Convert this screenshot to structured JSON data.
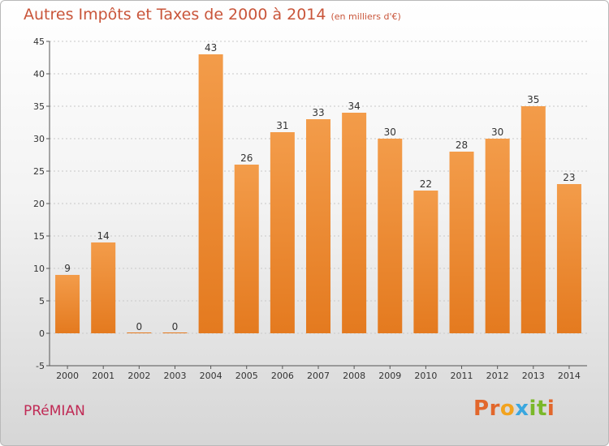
{
  "header": {
    "title": "Autres Impôts et Taxes de 2000 à 2014",
    "unit": "(en milliers d'€)"
  },
  "footer": {
    "commune": "PRéMIAN",
    "brand_letters": [
      "P",
      "r",
      "o",
      "x",
      "i",
      "t",
      "i"
    ],
    "brand_colors": [
      "#e2672c",
      "#e2672c",
      "#f2a31f",
      "#3aa7df",
      "#7ab829",
      "#7ab829",
      "#e2672c"
    ]
  },
  "colors": {
    "bar": "#f39c4a",
    "bar_dark": "#e47a1f",
    "grid": "#c8c8c8"
  },
  "chart_data": {
    "type": "bar",
    "categories": [
      "2000",
      "2001",
      "2002",
      "2003",
      "2004",
      "2005",
      "2006",
      "2007",
      "2008",
      "2009",
      "2010",
      "2011",
      "2012",
      "2013",
      "2014"
    ],
    "values": [
      9,
      14,
      0,
      0,
      43,
      26,
      31,
      33,
      34,
      30,
      22,
      28,
      30,
      35,
      23
    ],
    "data_labels": [
      "9",
      "14",
      "0",
      "0",
      "43",
      "26",
      "31",
      "33",
      "34",
      "30",
      "22",
      "28",
      "30",
      "35",
      "23"
    ],
    "ylim": [
      -5,
      45
    ],
    "yticks": [
      -5,
      0,
      5,
      10,
      15,
      20,
      25,
      30,
      35,
      40,
      45
    ],
    "grid": true,
    "xlabel": "",
    "ylabel": ""
  }
}
